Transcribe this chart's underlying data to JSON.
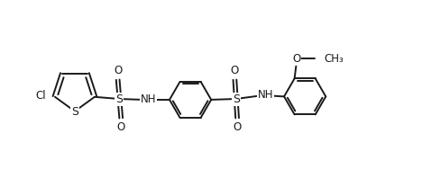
{
  "background_color": "#ffffff",
  "line_color": "#1a1a1a",
  "line_width": 1.4,
  "font_size": 8.5,
  "fig_width": 4.68,
  "fig_height": 1.88,
  "dpi": 100,
  "xlim": [
    0,
    10.5
  ],
  "ylim": [
    0,
    4.2
  ]
}
